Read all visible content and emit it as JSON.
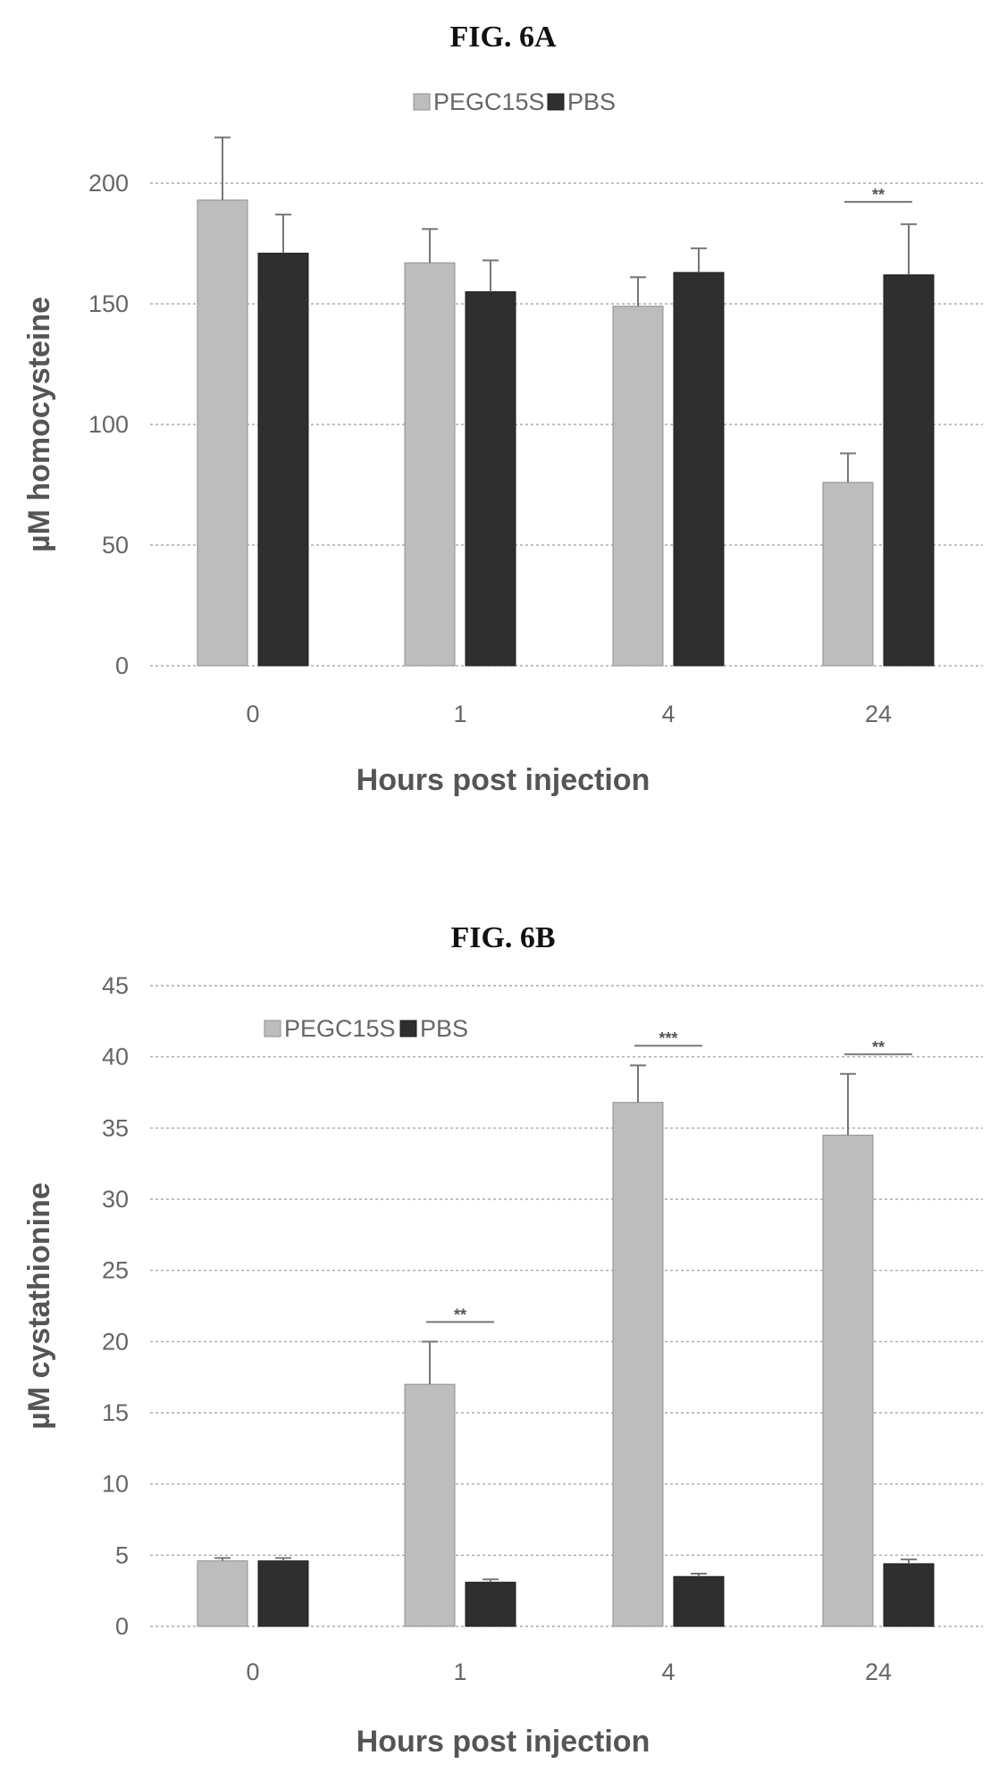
{
  "chart_data": [
    {
      "type": "bar",
      "title": "FIG. 6A",
      "xlabel": "Hours post injection",
      "ylabel": "µM homocysteine",
      "categories": [
        "0",
        "1",
        "4",
        "24"
      ],
      "ylim": [
        0,
        200
      ],
      "yticks": [
        0,
        50,
        100,
        150,
        200
      ],
      "grid": true,
      "legend_placement": "top-center",
      "series": [
        {
          "name": "PEGC15S",
          "color": "#bdbdbd",
          "values": [
            193,
            167,
            149,
            76
          ],
          "errors": [
            26,
            14,
            12,
            12
          ]
        },
        {
          "name": "PBS",
          "color": "#2f2f2f",
          "values": [
            171,
            155,
            163,
            162
          ],
          "errors": [
            16,
            13,
            10,
            21
          ]
        }
      ],
      "annotations": [
        {
          "category": "24",
          "label": "**"
        }
      ]
    },
    {
      "type": "bar",
      "title": "FIG. 6B",
      "xlabel": "Hours post injection",
      "ylabel": "µM cystathionine",
      "categories": [
        "0",
        "1",
        "4",
        "24"
      ],
      "ylim": [
        0,
        45
      ],
      "yticks": [
        0,
        5,
        10,
        15,
        20,
        25,
        30,
        35,
        40,
        45
      ],
      "grid": true,
      "legend_placement": "top-left",
      "series": [
        {
          "name": "PEGC15S",
          "color": "#bdbdbd",
          "values": [
            4.6,
            17,
            36.8,
            34.5
          ],
          "errors": [
            0.2,
            3,
            2.6,
            4.3
          ]
        },
        {
          "name": "PBS",
          "color": "#2f2f2f",
          "values": [
            4.6,
            3.1,
            3.5,
            4.4
          ],
          "errors": [
            0.2,
            0.2,
            0.2,
            0.3
          ]
        }
      ],
      "annotations": [
        {
          "category": "1",
          "label": "**"
        },
        {
          "category": "4",
          "label": "***"
        },
        {
          "category": "24",
          "label": "**"
        }
      ]
    }
  ]
}
